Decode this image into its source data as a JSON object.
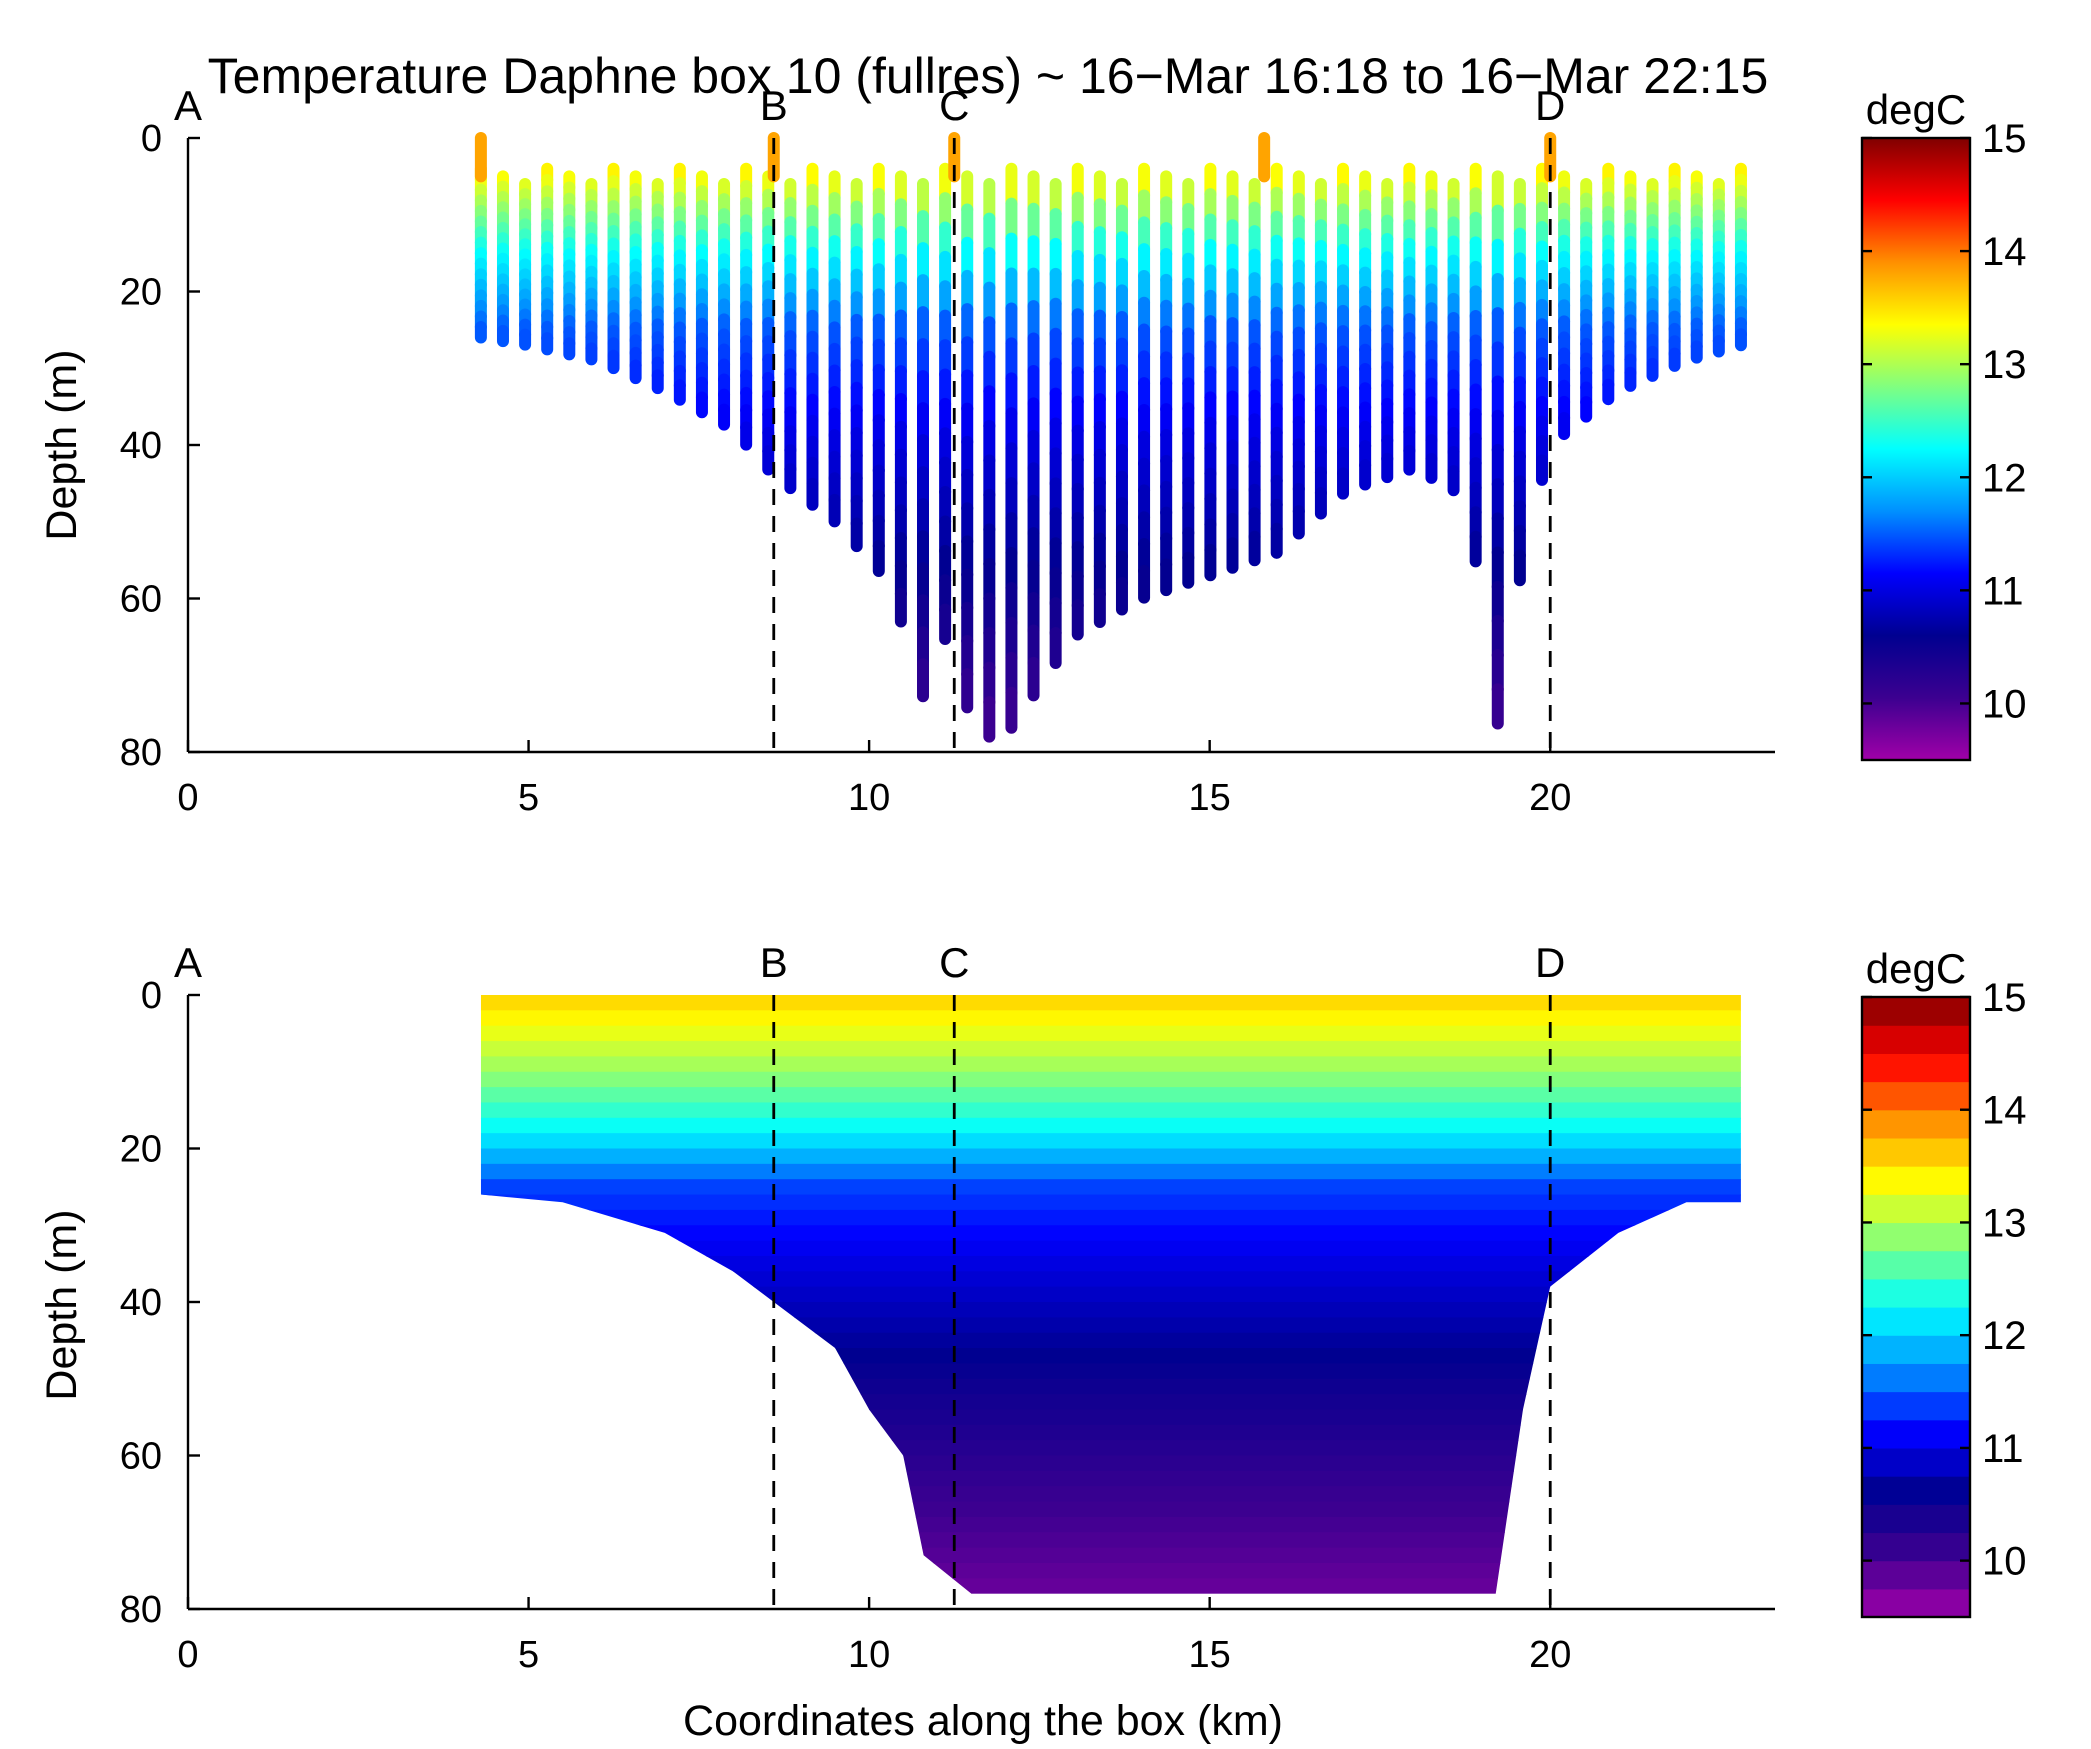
{
  "title": "Temperature Daphne box 10 (fullres) ~ 16−Mar 16:18 to 16−Mar 22:15",
  "colors": {
    "background": "#ffffff",
    "axis": "#000000",
    "colormap": [
      "#a000a8",
      "#3c0090",
      "#000090",
      "#0000ff",
      "#0090ff",
      "#00ffff",
      "#80ff80",
      "#ffff00",
      "#ff9000",
      "#ff0000",
      "#800000"
    ]
  },
  "chart_data": [
    {
      "panel": "top",
      "type": "scatter",
      "description_kind": "glider-dive temperature profiles",
      "xlabel": "",
      "ylabel": "Depth (m)",
      "xlim": [
        0,
        23.3
      ],
      "ylim": [
        80,
        0
      ],
      "y_reversed": true,
      "xticks": [
        0,
        5,
        10,
        15,
        20
      ],
      "yticks": [
        0,
        20,
        40,
        60,
        80
      ],
      "section_markers": [
        {
          "label": "A",
          "x": 0
        },
        {
          "label": "B",
          "x": 8.6
        },
        {
          "label": "C",
          "x": 11.25
        },
        {
          "label": "D",
          "x": 20.0
        }
      ],
      "colorbar": {
        "label": "degC",
        "range": [
          9.5,
          15
        ],
        "ticks": [
          10,
          11,
          12,
          13,
          14,
          15
        ],
        "style": "continuous"
      },
      "dive_x_range_km": [
        4.3,
        22.8
      ],
      "dive_max_depth_profile": {
        "x": [
          4.3,
          5.0,
          6.0,
          7.0,
          8.0,
          8.6,
          9.5,
          10.3,
          10.8,
          11.25,
          11.5,
          12.0,
          13.0,
          14.0,
          15.0,
          16.0,
          17.0,
          18.0,
          18.8,
          19.2,
          19.6,
          20.0,
          21.0,
          22.0,
          22.8
        ],
        "max_depth_m": [
          26,
          27,
          29,
          33,
          38,
          44,
          50,
          58,
          73,
          62,
          78,
          78,
          65,
          60,
          57,
          54,
          46,
          43,
          47,
          78,
          55,
          40,
          33,
          29,
          27
        ]
      },
      "temperature_layers": [
        {
          "depth_m": 5,
          "temp_c": 13.4
        },
        {
          "depth_m": 15,
          "temp_c": 12.3
        },
        {
          "depth_m": 25,
          "temp_c": 11.5
        },
        {
          "depth_m": 40,
          "temp_c": 11.0
        },
        {
          "depth_m": 60,
          "temp_c": 10.5
        },
        {
          "depth_m": 78,
          "temp_c": 10.0
        }
      ],
      "warm_surface_spikes_km": [
        4.3,
        8.6,
        11.25,
        15.8,
        20.0
      ]
    },
    {
      "panel": "bottom",
      "type": "heatmap",
      "description_kind": "gridded temperature section (filled contours)",
      "xlabel": "Coordinates along the box (km)",
      "ylabel": "Depth (m)",
      "xlim": [
        0,
        23.3
      ],
      "ylim": [
        80,
        0
      ],
      "y_reversed": true,
      "xticks": [
        0,
        5,
        10,
        15,
        20
      ],
      "yticks": [
        0,
        20,
        40,
        60,
        80
      ],
      "section_markers": [
        {
          "label": "A",
          "x": 0
        },
        {
          "label": "B",
          "x": 8.6
        },
        {
          "label": "C",
          "x": 11.25
        },
        {
          "label": "D",
          "x": 20.0
        }
      ],
      "colorbar": {
        "label": "degC",
        "range": [
          9.5,
          15
        ],
        "ticks": [
          10,
          11,
          12,
          13,
          14,
          15
        ],
        "style": "discrete"
      },
      "data_extent": {
        "x": [
          4.3,
          5.5,
          7.0,
          8.0,
          8.6,
          9.5,
          10.0,
          10.5,
          10.8,
          11.5,
          19.2,
          19.6,
          20.0,
          21.0,
          22.0,
          22.8
        ],
        "bottom_depth_m": [
          26,
          27,
          31,
          36,
          40,
          46,
          54,
          60,
          73,
          78,
          78,
          54,
          38,
          31,
          27,
          27
        ]
      },
      "temperature_layers": [
        {
          "depth_m": 0,
          "temp_c": 13.6
        },
        {
          "depth_m": 10,
          "temp_c": 12.9
        },
        {
          "depth_m": 18,
          "temp_c": 12.2
        },
        {
          "depth_m": 25,
          "temp_c": 11.4
        },
        {
          "depth_m": 35,
          "temp_c": 11.0
        },
        {
          "depth_m": 50,
          "temp_c": 10.5
        },
        {
          "depth_m": 65,
          "temp_c": 10.1
        },
        {
          "depth_m": 78,
          "temp_c": 9.8
        }
      ]
    }
  ]
}
